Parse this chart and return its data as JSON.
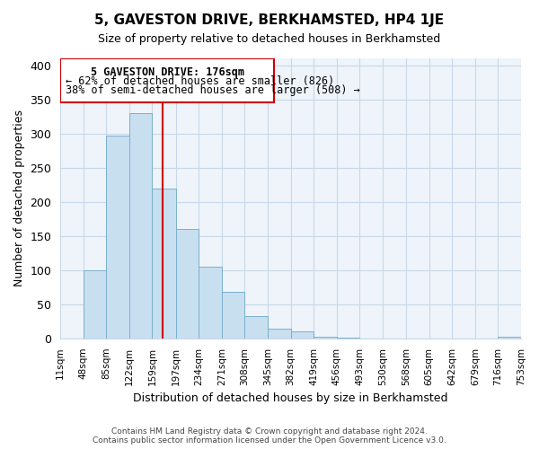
{
  "title": "5, GAVESTON DRIVE, BERKHAMSTED, HP4 1JE",
  "subtitle": "Size of property relative to detached houses in Berkhamsted",
  "xlabel": "Distribution of detached houses by size in Berkhamsted",
  "ylabel": "Number of detached properties",
  "footer_line1": "Contains HM Land Registry data © Crown copyright and database right 2024.",
  "footer_line2": "Contains public sector information licensed under the Open Government Licence v3.0.",
  "bin_edges": [
    11,
    48,
    85,
    122,
    159,
    197,
    234,
    271,
    308,
    345,
    382,
    419,
    456,
    493,
    530,
    568,
    605,
    642,
    679,
    716,
    753
  ],
  "bin_labels": [
    "11sqm",
    "48sqm",
    "85sqm",
    "122sqm",
    "159sqm",
    "197sqm",
    "234sqm",
    "271sqm",
    "308sqm",
    "345sqm",
    "382sqm",
    "419sqm",
    "456sqm",
    "493sqm",
    "530sqm",
    "568sqm",
    "605sqm",
    "642sqm",
    "679sqm",
    "716sqm",
    "753sqm"
  ],
  "bar_heights": [
    0,
    100,
    297,
    330,
    220,
    160,
    105,
    68,
    32,
    14,
    10,
    3,
    1,
    0,
    0,
    0,
    0,
    0,
    0,
    2
  ],
  "bar_color": "#c8dff0",
  "bar_edge_color": "#7ab0cc",
  "vline_x": 176,
  "vline_color": "#cc0000",
  "ylim": [
    0,
    410
  ],
  "yticks": [
    0,
    50,
    100,
    150,
    200,
    250,
    300,
    350,
    400
  ],
  "annotation_title": "5 GAVESTON DRIVE: 176sqm",
  "annotation_line1": "← 62% of detached houses are smaller (826)",
  "annotation_line2": "38% of semi-detached houses are larger (508) →",
  "annotation_box_color": "#cc0000",
  "background_color": "#ffffff",
  "plot_bg_color": "#eef4fa",
  "grid_color": "#c8d8e8"
}
